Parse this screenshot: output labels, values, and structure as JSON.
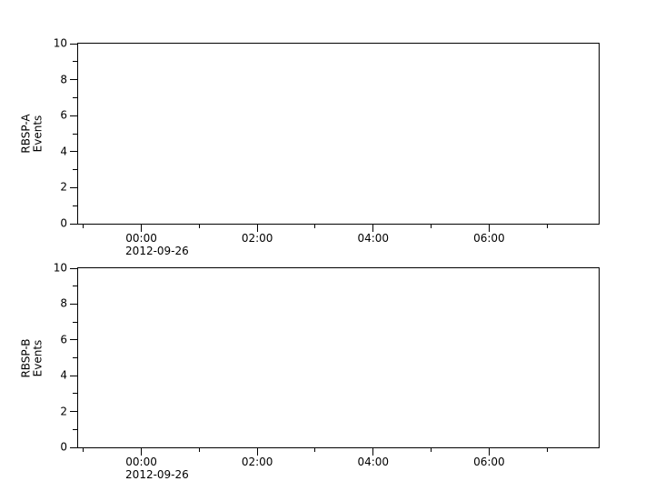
{
  "colors": {
    "background": "#ffffff",
    "axis": "#000000",
    "text": "#000000"
  },
  "chart_data": [
    {
      "type": "line",
      "title": "",
      "xlabel": "",
      "ylabel": "RBSP-A\nEvents",
      "ylim": [
        0,
        10
      ],
      "ytick_major": [
        0,
        2,
        4,
        6,
        8,
        10
      ],
      "ytick_minor": [
        1,
        3,
        5,
        7,
        9
      ],
      "grid": false,
      "x_axis": {
        "date": "2012-09-26",
        "range_hours": [
          -1.09,
          7.89
        ],
        "major_ticks": [
          {
            "hour": 0,
            "label": "00:00",
            "date_below": "2012-09-26"
          },
          {
            "hour": 2,
            "label": "02:00"
          },
          {
            "hour": 4,
            "label": "04:00"
          },
          {
            "hour": 6,
            "label": "06:00"
          }
        ],
        "minor_tick_hours": [
          -1,
          1,
          3,
          5,
          7
        ]
      },
      "series": []
    },
    {
      "type": "line",
      "title": "",
      "xlabel": "",
      "ylabel": "RBSP-B\nEvents",
      "ylim": [
        0,
        10
      ],
      "ytick_major": [
        0,
        2,
        4,
        6,
        8,
        10
      ],
      "ytick_minor": [
        1,
        3,
        5,
        7,
        9
      ],
      "grid": false,
      "x_axis": {
        "date": "2012-09-26",
        "range_hours": [
          -1.09,
          7.89
        ],
        "major_ticks": [
          {
            "hour": 0,
            "label": "00:00",
            "date_below": "2012-09-26"
          },
          {
            "hour": 2,
            "label": "02:00"
          },
          {
            "hour": 4,
            "label": "04:00"
          },
          {
            "hour": 6,
            "label": "06:00"
          }
        ],
        "minor_tick_hours": [
          -1,
          1,
          3,
          5,
          7
        ]
      },
      "series": []
    }
  ]
}
